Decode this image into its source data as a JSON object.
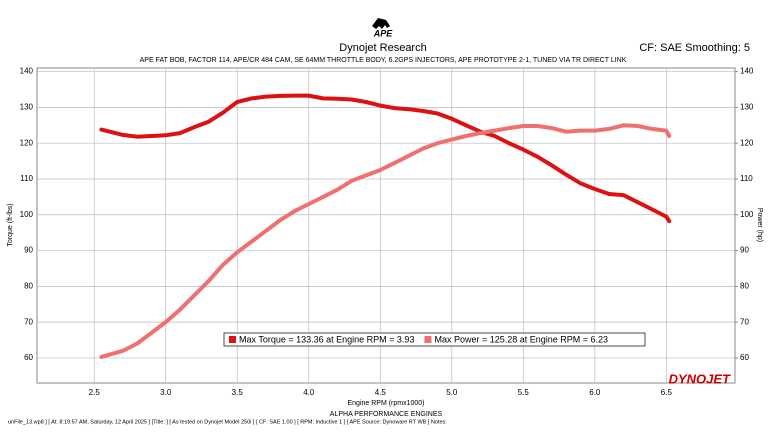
{
  "chart_data": {
    "type": "line",
    "logo": "APE",
    "title": "Dynojet Research",
    "subtitle": "APE FAT BOB, FACTOR 114, APE/CR 484 CAM, SE 64MM THROTTLE BODY, 6.2GPS INJECTORS, APE PROTOTYPE 2-1, TUNED VIA TR DIRECT LINK",
    "settings_text": "CF: SAE Smoothing: 5",
    "y_label": "Torque (ft-lbs)",
    "y2_label": "Power (hp)",
    "x_label": "Engine RPM (rpmx1000)",
    "footer_title": "ALPHA PERFORMANCE ENGINES",
    "brand": "DYNOJET",
    "footer": "unFile_13.wp8 ] [ At: 8:19:57 AM, Saturday, 12 April 2025 ] [Title: ] [ As tested on Dynojet Model 250i ] [ CF: SAE 1.00 ] [ RPM: Inductive 1 ] [ APE Source: Dynoware RT WB ] Notes:",
    "x": [
      2.55,
      2.7,
      2.8,
      2.9,
      3.0,
      3.1,
      3.2,
      3.3,
      3.4,
      3.5,
      3.6,
      3.7,
      3.8,
      3.9,
      4.0,
      4.1,
      4.2,
      4.3,
      4.4,
      4.5,
      4.6,
      4.7,
      4.8,
      4.9,
      5.0,
      5.1,
      5.2,
      5.3,
      5.4,
      5.5,
      5.6,
      5.7,
      5.8,
      5.9,
      6.0,
      6.1,
      6.2,
      6.3,
      6.4,
      6.5,
      6.52
    ],
    "series": [
      {
        "name": "Max Torque = 133.36 at Engine RPM = 3.93",
        "color": "#dd1111",
        "values": [
          123.8,
          122.3,
          121.8,
          122,
          122.2,
          122.8,
          124.5,
          126,
          128.5,
          131.5,
          132.5,
          133,
          133.2,
          133.3,
          133.3,
          132.5,
          132.4,
          132.2,
          131.5,
          130.5,
          129.8,
          129.5,
          129,
          128.3,
          126.8,
          125,
          123.2,
          122,
          120,
          118.2,
          116.2,
          113.8,
          111.2,
          108.8,
          107.2,
          105.8,
          105.5,
          103.5,
          101.5,
          99.5,
          98.2
        ]
      },
      {
        "name": "Max Power = 125.28 at Engine RPM = 6.23",
        "color": "#f07070",
        "axis": "y2",
        "values": [
          60.3,
          62,
          64,
          67,
          70,
          73.5,
          77.5,
          81.5,
          86,
          89.5,
          92.5,
          95.5,
          98.5,
          101,
          103,
          105,
          107,
          109.5,
          111,
          112.5,
          114.5,
          116.5,
          118.5,
          120,
          121,
          122,
          122.8,
          123.5,
          124.2,
          124.8,
          124.8,
          124.2,
          123.2,
          123.5,
          123.5,
          124,
          125,
          124.8,
          124,
          123.5,
          122
        ]
      }
    ],
    "xlim": [
      2.1,
      6.98
    ],
    "xticks": [
      2.5,
      {
        "value": 3,
        "label": "3.0"
      },
      3.5,
      {
        "value": 4,
        "label": "4.0"
      },
      4.5,
      {
        "value": 5,
        "label": "5.0"
      },
      5.5,
      {
        "value": 6,
        "label": "6.0"
      },
      6.5
    ],
    "ylim": [
      53,
      141
    ],
    "yticks": [
      60,
      70,
      80,
      90,
      100,
      110,
      120,
      130,
      140
    ],
    "y2lim": [
      53,
      141
    ],
    "y2ticks": [
      60,
      70,
      80,
      90,
      100,
      110,
      120,
      130,
      140
    ],
    "grid": true
  }
}
